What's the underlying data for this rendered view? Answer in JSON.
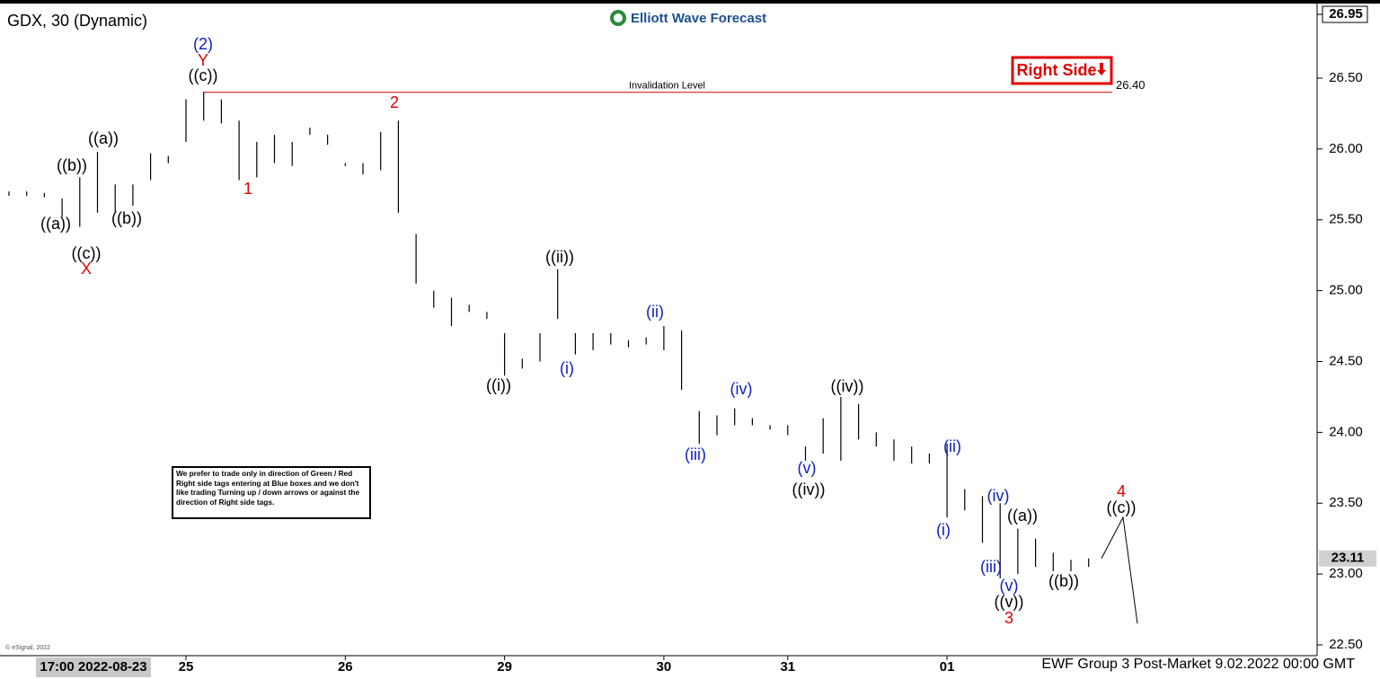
{
  "chart_data": {
    "type": "range_bar",
    "title": "GDX, 30 (Dynamic)",
    "brand": "Elliott Wave Forecast",
    "right_side": "Right Side",
    "note": "We prefer to trade only in direction of Green / Red Right side tags entering at Blue boxes and we don't like trading Turning up / down arrows or against the direction of Right side tags.",
    "footer": "EWF Group 3 Post-Market 9.02.2022 00:00 GMT",
    "copyright": "© eSignal, 2022",
    "color": "#000000",
    "categories": [
      null,
      null,
      null,
      null,
      null,
      "17:00 2022-08-23",
      null,
      null,
      null,
      null,
      "25",
      null,
      null,
      null,
      null,
      null,
      null,
      null,
      null,
      "26",
      null,
      null,
      null,
      null,
      null,
      null,
      null,
      null,
      "29",
      null,
      null,
      null,
      null,
      null,
      null,
      null,
      null,
      "30",
      null,
      null,
      null,
      null,
      null,
      null,
      "31",
      null,
      null,
      null,
      null,
      null,
      null,
      null,
      null,
      "01",
      null,
      null,
      null,
      null,
      null,
      null,
      null,
      null
    ],
    "high": [
      25.7,
      25.7,
      25.69,
      25.65,
      25.8,
      25.98,
      25.75,
      25.75,
      25.97,
      25.95,
      26.35,
      26.4,
      26.35,
      26.2,
      26.05,
      26.1,
      26.05,
      26.15,
      26.1,
      25.9,
      25.9,
      26.12,
      26.2,
      25.4,
      25.0,
      24.95,
      24.9,
      24.85,
      24.7,
      24.52,
      24.7,
      25.15,
      24.7,
      24.7,
      24.7,
      24.65,
      24.67,
      24.75,
      24.72,
      24.15,
      24.12,
      24.17,
      24.1,
      24.05,
      24.05,
      23.9,
      24.1,
      24.25,
      24.2,
      24.0,
      23.95,
      23.9,
      23.85,
      23.92,
      23.6,
      23.55,
      23.5,
      23.32,
      23.25,
      23.15,
      23.1,
      23.11
    ],
    "low": [
      25.67,
      25.67,
      25.66,
      25.52,
      25.45,
      25.55,
      25.55,
      25.6,
      25.78,
      25.9,
      26.05,
      26.2,
      26.18,
      25.78,
      25.8,
      25.9,
      25.88,
      26.1,
      26.03,
      25.88,
      25.82,
      25.85,
      25.55,
      25.05,
      24.88,
      24.75,
      24.85,
      24.8,
      24.4,
      24.45,
      24.5,
      24.8,
      24.55,
      24.58,
      24.62,
      24.6,
      24.62,
      24.58,
      24.3,
      23.92,
      23.98,
      24.05,
      24.05,
      24.02,
      23.98,
      23.8,
      23.85,
      23.8,
      23.95,
      23.9,
      23.8,
      23.78,
      23.78,
      23.4,
      23.45,
      23.22,
      22.97,
      23.0,
      23.05,
      23.02,
      23.02,
      23.05
    ],
    "projection": [
      23.11,
      23.4,
      22.65
    ],
    "invalidation": {
      "label": "Invalidation Level",
      "value": 26.4,
      "value_label": "26.40",
      "color": "#d00000"
    },
    "last": {
      "value": 23.11,
      "label": "23.11"
    },
    "ylim": [
      22.5,
      26.95
    ],
    "yticks": [
      {
        "value": 22.5,
        "label": "22.50"
      },
      {
        "value": 23,
        "label": "23.00"
      },
      {
        "value": 23.5,
        "label": "23.50"
      },
      {
        "value": 24,
        "label": "24.00"
      },
      {
        "value": 24.5,
        "label": "24.50"
      },
      {
        "value": 25,
        "label": "25.00"
      },
      {
        "value": 25.5,
        "label": "25.50"
      },
      {
        "value": 26,
        "label": "26.00"
      },
      {
        "value": 26.5,
        "label": "26.50"
      },
      {
        "value": 26.95,
        "label": "26.95"
      }
    ],
    "annotations": [
      {
        "text": "(2)",
        "color": "#1020c0"
      },
      {
        "text": "Y",
        "color": "#e00000"
      },
      {
        "text": "((c))",
        "color": "#000"
      },
      {
        "text": "((a))",
        "color": "#000"
      },
      {
        "text": "((b))",
        "color": "#000"
      },
      {
        "text": "((a))",
        "color": "#000"
      },
      {
        "text": "((b))",
        "color": "#000"
      },
      {
        "text": "((c))",
        "color": "#000"
      },
      {
        "text": "X",
        "color": "#e00000"
      },
      {
        "text": "1",
        "color": "#e00000"
      },
      {
        "text": "2",
        "color": "#e00000"
      },
      {
        "text": "((ii))",
        "color": "#000"
      },
      {
        "text": "(ii)",
        "color": "#1020c0"
      },
      {
        "text": "(i)",
        "color": "#1020c0"
      },
      {
        "text": "((i))",
        "color": "#000"
      },
      {
        "text": "(iv)",
        "color": "#1020c0"
      },
      {
        "text": "(iii)",
        "color": "#1020c0"
      },
      {
        "text": "((iv))",
        "color": "#000"
      },
      {
        "text": "(v)",
        "color": "#1020c0"
      },
      {
        "text": "((iv))",
        "color": "#000"
      },
      {
        "text": "(ii)",
        "color": "#1020c0"
      },
      {
        "text": "(i)",
        "color": "#1020c0"
      },
      {
        "text": "(iv)",
        "color": "#1020c0"
      },
      {
        "text": "((a))",
        "color": "#000"
      },
      {
        "text": "(iii)",
        "color": "#1020c0"
      },
      {
        "text": "(v)",
        "color": "#1020c0"
      },
      {
        "text": "((v))",
        "color": "#000"
      },
      {
        "text": "3",
        "color": "#e00000"
      },
      {
        "text": "((b))",
        "color": "#000"
      },
      {
        "text": "4",
        "color": "#e00000"
      },
      {
        "text": "((c))",
        "color": "#000"
      }
    ]
  }
}
